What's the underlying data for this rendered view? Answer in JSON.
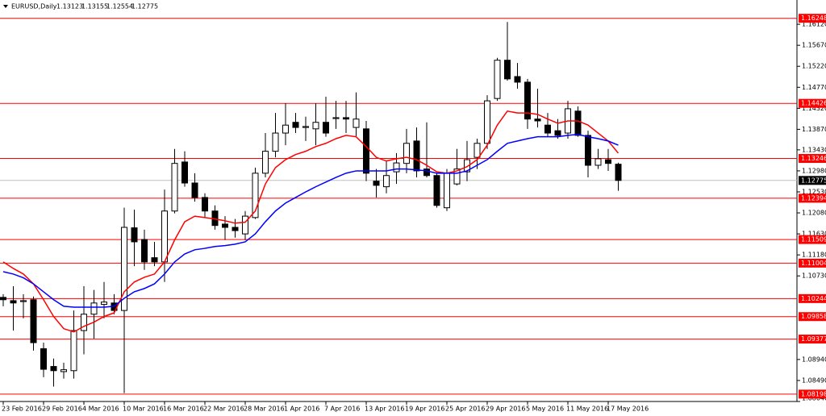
{
  "chart_data": {
    "type": "candlestick",
    "title": "EURUSD,Daily",
    "categories": [
      "23 Feb 2016",
      null,
      null,
      null,
      "29 Feb 2016",
      null,
      null,
      null,
      "4 Mar 2016",
      null,
      null,
      null,
      "10 Mar 2016",
      null,
      null,
      null,
      "16 Mar 2016",
      null,
      null,
      null,
      "22 Mar 2016",
      null,
      null,
      null,
      "28 Mar 2016",
      null,
      null,
      null,
      "1 Apr 2016",
      null,
      null,
      null,
      "7 Apr 2016",
      null,
      null,
      null,
      "13 Apr 2016",
      null,
      null,
      null,
      "19 Apr 2016",
      null,
      null,
      null,
      "25 Apr 2016",
      null,
      null,
      null,
      "29 Apr 2016",
      null,
      null,
      null,
      "5 May 2016",
      null,
      null,
      null,
      "11 May 2016",
      null,
      null,
      null,
      "17 May 2016",
      null
    ],
    "open": [
      1.1027,
      1.102,
      1.1018,
      1.1022,
      1.0917,
      1.0879,
      1.0868,
      1.087,
      1.0956,
      1.0991,
      1.1012,
      1.1015,
      1.0999,
      1.1176,
      1.1151,
      1.1112,
      1.1103,
      1.1212,
      1.1317,
      1.1272,
      1.1241,
      1.1212,
      1.1184,
      1.1177,
      1.1163,
      1.1198,
      1.1293,
      1.134,
      1.1379,
      1.1402,
      1.1391,
      1.1388,
      1.1402,
      1.141,
      1.1412,
      1.1391,
      1.1388,
      1.1276,
      1.1264,
      1.1296,
      1.1314,
      1.1362,
      1.1302,
      1.1288,
      1.1219,
      1.127,
      1.1296,
      1.1327,
      1.1357,
      1.1453,
      1.1535,
      1.15,
      1.1488,
      1.1409,
      1.1396,
      1.1384,
      1.1379,
      1.1426,
      1.1374,
      1.131,
      1.1322,
      1.13123
    ],
    "high": [
      1.1034,
      1.1051,
      1.1034,
      1.1029,
      1.093,
      1.0896,
      1.0887,
      1.0999,
      1.1051,
      1.1043,
      1.106,
      1.1034,
      1.1219,
      1.1215,
      1.1172,
      1.1146,
      1.1258,
      1.1345,
      1.134,
      1.1293,
      1.125,
      1.1224,
      1.1201,
      1.1195,
      1.1212,
      1.1305,
      1.1379,
      1.1422,
      1.1443,
      1.1422,
      1.1414,
      1.1443,
      1.1457,
      1.1448,
      1.1448,
      1.1466,
      1.1405,
      1.1302,
      1.1319,
      1.1336,
      1.1388,
      1.1391,
      1.1402,
      1.1293,
      1.1302,
      1.1345,
      1.1362,
      1.1367,
      1.146,
      1.154,
      1.1617,
      1.1529,
      1.1495,
      1.1474,
      1.1422,
      1.1409,
      1.1448,
      1.1436,
      1.1384,
      1.1345,
      1.1345,
      1.13155
    ],
    "low": [
      1.1008,
      1.0956,
      1.0982,
      1.0913,
      1.0856,
      1.0836,
      1.0853,
      1.0853,
      1.0905,
      1.0939,
      1.0982,
      1.0991,
      1.0822,
      1.1094,
      1.1086,
      1.1094,
      1.106,
      1.1207,
      1.1264,
      1.1232,
      1.1198,
      1.1172,
      1.115,
      1.1155,
      1.115,
      1.1195,
      1.1284,
      1.1327,
      1.1353,
      1.1379,
      1.1362,
      1.1353,
      1.1371,
      1.1388,
      1.1379,
      1.1371,
      1.1276,
      1.1241,
      1.125,
      1.127,
      1.1293,
      1.1284,
      1.1284,
      1.1219,
      1.1212,
      1.1267,
      1.1276,
      1.1302,
      1.1345,
      1.1448,
      1.1491,
      1.1474,
      1.1388,
      1.1391,
      1.1371,
      1.1367,
      1.1367,
      1.1371,
      1.1284,
      1.1302,
      1.1298,
      1.12554
    ],
    "close": [
      1.1022,
      1.1015,
      1.102,
      1.093,
      1.0873,
      1.087,
      1.0872,
      1.0956,
      1.0991,
      1.1015,
      1.1017,
      1.0999,
      1.1177,
      1.1146,
      1.1103,
      1.1103,
      1.1212,
      1.1314,
      1.1272,
      1.1241,
      1.1212,
      1.1181,
      1.1177,
      1.117,
      1.1201,
      1.1293,
      1.134,
      1.1379,
      1.1396,
      1.1391,
      1.1393,
      1.1402,
      1.1379,
      1.1412,
      1.1409,
      1.1409,
      1.1293,
      1.1267,
      1.1288,
      1.1315,
      1.1357,
      1.1298,
      1.1288,
      1.1224,
      1.1293,
      1.1302,
      1.1322,
      1.1357,
      1.1448,
      1.1535,
      1.1495,
      1.1488,
      1.1409,
      1.1405,
      1.1379,
      1.1374,
      1.1431,
      1.1374,
      1.131,
      1.1324,
      1.1314,
      1.12775
    ],
    "up_color": "#ffffff",
    "down_color": "#000000",
    "moving_averages": [
      {
        "color": "#ff0000",
        "values": [
          1.1103,
          1.1089,
          1.1077,
          1.1056,
          1.1022,
          1.0986,
          1.096,
          1.0953,
          1.0965,
          1.0974,
          1.0986,
          1.0994,
          1.1039,
          1.106,
          1.107,
          1.1077,
          1.1103,
          1.115,
          1.1189,
          1.1201,
          1.1198,
          1.1195,
          1.1191,
          1.1186,
          1.1188,
          1.1212,
          1.127,
          1.1305,
          1.1322,
          1.1333,
          1.134,
          1.135,
          1.1357,
          1.1367,
          1.1374,
          1.1371,
          1.135,
          1.1327,
          1.1319,
          1.1324,
          1.1327,
          1.1322,
          1.131,
          1.1296,
          1.1293,
          1.1298,
          1.1307,
          1.1322,
          1.1353,
          1.1396,
          1.1426,
          1.1422,
          1.1422,
          1.1419,
          1.1409,
          1.14,
          1.1405,
          1.1405,
          1.1396,
          1.1379,
          1.1362,
          1.1336
        ]
      },
      {
        "color": "#0000ff",
        "values": [
          1.1082,
          1.1077,
          1.1069,
          1.1056,
          1.1039,
          1.1022,
          1.1008,
          1.1006,
          1.1006,
          1.1006,
          1.1006,
          1.1008,
          1.1025,
          1.1039,
          1.1046,
          1.1056,
          1.1077,
          1.1103,
          1.112,
          1.1129,
          1.1132,
          1.1136,
          1.1138,
          1.1141,
          1.1146,
          1.1163,
          1.1189,
          1.1212,
          1.1229,
          1.1241,
          1.1253,
          1.1264,
          1.1274,
          1.1284,
          1.1293,
          1.1298,
          1.1298,
          1.1298,
          1.1298,
          1.1302,
          1.1302,
          1.13,
          1.1298,
          1.1293,
          1.1293,
          1.1293,
          1.1298,
          1.131,
          1.1322,
          1.134,
          1.1357,
          1.1362,
          1.1367,
          1.1371,
          1.1371,
          1.1371,
          1.1374,
          1.1376,
          1.1371,
          1.1367,
          1.1362,
          1.1353
        ]
      }
    ],
    "levels": {
      "color": "#ff0000",
      "values": [
        1.16248,
        1.14426,
        1.13246,
        1.12394,
        1.11509,
        1.11004,
        1.10244,
        1.09858,
        1.09377,
        1.08198
      ]
    },
    "ylim": [
      1.0804,
      1.1664
    ],
    "yticks": [
      {
        "value": 1.1612,
        "label": "1.16120"
      },
      {
        "value": 1.1567,
        "label": "1.15670"
      },
      {
        "value": 1.1522,
        "label": "1.15220"
      },
      {
        "value": 1.1477,
        "label": "1.14770"
      },
      {
        "value": 1.1432,
        "label": "1.14320"
      },
      {
        "value": 1.1387,
        "label": "1.13870"
      },
      {
        "value": 1.1343,
        "label": "1.13430"
      },
      {
        "value": 1.1298,
        "label": "1.12980"
      },
      {
        "value": 1.1253,
        "label": "1.12530"
      },
      {
        "value": 1.1208,
        "label": "1.12080"
      },
      {
        "value": 1.1163,
        "label": "1.11630"
      },
      {
        "value": 1.1118,
        "label": "1.11180"
      },
      {
        "value": 1.1073,
        "label": "1.10730"
      },
      {
        "value": 1.0894,
        "label": "1.08940"
      },
      {
        "value": 1.0849,
        "label": "1.08490"
      },
      {
        "value": 1.0804,
        "label": "1.08040"
      }
    ]
  }
}
